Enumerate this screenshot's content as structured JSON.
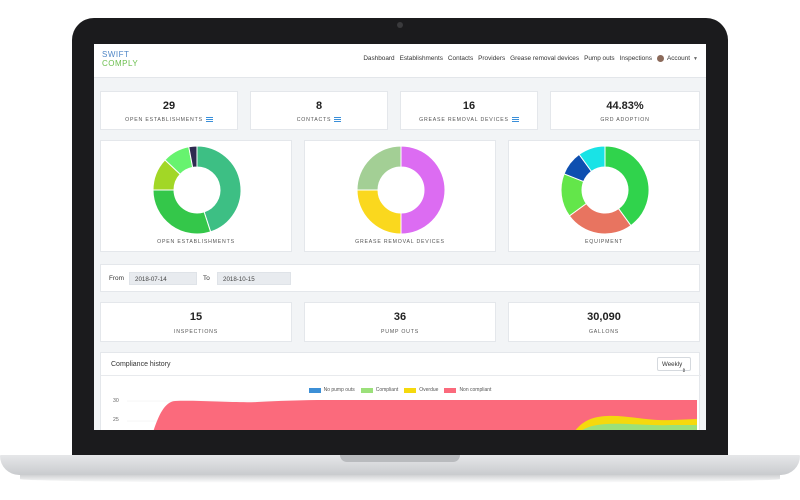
{
  "nav": {
    "logo_line1": "SWIFT",
    "logo_line2": "COMPLY",
    "links": [
      "Dashboard",
      "Establishments",
      "Contacts",
      "Providers",
      "Grease removal devices",
      "Pump outs",
      "Inspections"
    ],
    "account": "Account"
  },
  "stats_top": [
    {
      "value": "29",
      "label": "OPEN ESTABLISHMENTS"
    },
    {
      "value": "8",
      "label": "CONTACTS"
    },
    {
      "value": "16",
      "label": "GREASE REMOVAL DEVICES"
    },
    {
      "value": "44.83%",
      "label": "GRD ADOPTION"
    }
  ],
  "donuts": [
    {
      "label": "OPEN ESTABLISHMENTS"
    },
    {
      "label": "GREASE REMOVAL DEVICES"
    },
    {
      "label": "EQUIPMENT"
    }
  ],
  "date_filter": {
    "from_label": "From",
    "from_value": "2018-07-14",
    "to_label": "To",
    "to_value": "2018-10-15"
  },
  "stats_bottom": [
    {
      "value": "15",
      "label": "INSPECTIONS"
    },
    {
      "value": "36",
      "label": "PUMP OUTS"
    },
    {
      "value": "30,090",
      "label": "GALLONS"
    }
  ],
  "compliance": {
    "title": "Compliance history",
    "period_select": "Weekly",
    "legend": [
      {
        "name": "No pump outs",
        "color": "#3c8fd6"
      },
      {
        "name": "Compliant",
        "color": "#9be07a"
      },
      {
        "name": "Overdue",
        "color": "#f5d90d"
      },
      {
        "name": "Non compliant",
        "color": "#fb6a7c"
      }
    ]
  },
  "chart_data": [
    {
      "type": "pie",
      "title": "",
      "label": "OPEN ESTABLISHMENTS",
      "values": [
        45,
        30,
        12,
        10,
        3
      ],
      "colors": [
        "#3dbf84",
        "#34c74a",
        "#a2d726",
        "#67f36f",
        "#2e2a50"
      ]
    },
    {
      "type": "pie",
      "title": "",
      "label": "GREASE REMOVAL DEVICES",
      "values": [
        50,
        25,
        25
      ],
      "colors": [
        "#dc6cf2",
        "#fad81e",
        "#a3cf95"
      ]
    },
    {
      "type": "pie",
      "title": "",
      "label": "EQUIPMENT",
      "values": [
        40,
        25,
        16,
        9,
        10
      ],
      "colors": [
        "#30d34c",
        "#e87460",
        "#63e64a",
        "#0e4fb0",
        "#19e3e6"
      ]
    },
    {
      "type": "area",
      "title": "Compliance history",
      "ylim": [
        0,
        30
      ],
      "yticks": [
        30,
        25
      ],
      "series": [
        {
          "name": "Non compliant",
          "color": "#fb6a7c"
        },
        {
          "name": "Overdue",
          "color": "#f5d90d"
        },
        {
          "name": "Compliant",
          "color": "#9be07a"
        },
        {
          "name": "No pump outs",
          "color": "#3c8fd6"
        }
      ]
    }
  ]
}
